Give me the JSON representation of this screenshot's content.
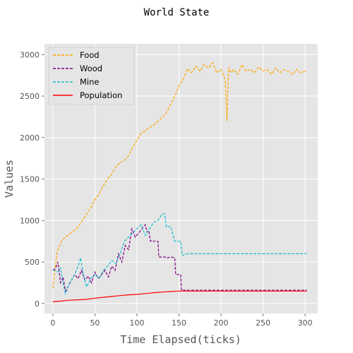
{
  "chart_data": {
    "type": "line",
    "title": "World State",
    "xlabel": "Time Elapsed(ticks)",
    "ylabel": "Values",
    "xlim": [
      -10,
      315
    ],
    "ylim": [
      -120,
      3130
    ],
    "xticks": [
      0,
      50,
      100,
      150,
      200,
      250,
      300
    ],
    "yticks": [
      0,
      500,
      1000,
      1500,
      2000,
      2500,
      3000
    ],
    "grid": true,
    "legend_position": "top-left",
    "background": "#e5e5e5",
    "series": [
      {
        "name": "Food",
        "color": "#ffa500",
        "style": "dashed",
        "x": [
          0,
          5,
          10,
          15,
          20,
          25,
          30,
          35,
          40,
          45,
          50,
          55,
          60,
          65,
          70,
          75,
          80,
          85,
          90,
          95,
          100,
          105,
          110,
          115,
          120,
          125,
          130,
          135,
          140,
          145,
          150,
          155,
          160,
          165,
          170,
          175,
          180,
          185,
          190,
          195,
          200,
          205,
          207,
          209,
          212,
          215,
          220,
          225,
          230,
          235,
          240,
          245,
          250,
          255,
          260,
          265,
          270,
          275,
          280,
          285,
          290,
          295,
          300,
          302
        ],
        "y": [
          180,
          620,
          750,
          800,
          840,
          880,
          920,
          1000,
          1080,
          1150,
          1250,
          1320,
          1420,
          1500,
          1560,
          1650,
          1700,
          1720,
          1780,
          1880,
          1970,
          2050,
          2080,
          2120,
          2150,
          2200,
          2240,
          2300,
          2400,
          2500,
          2620,
          2700,
          2830,
          2780,
          2860,
          2800,
          2880,
          2840,
          2900,
          2780,
          2820,
          2700,
          2200,
          2850,
          2780,
          2820,
          2760,
          2880,
          2800,
          2820,
          2780,
          2850,
          2800,
          2820,
          2760,
          2840,
          2780,
          2820,
          2800,
          2760,
          2820,
          2780,
          2800,
          2800
        ]
      },
      {
        "name": "Wood",
        "color": "#800080",
        "style": "dashed",
        "x": [
          0,
          3,
          6,
          9,
          12,
          15,
          18,
          22,
          26,
          30,
          34,
          38,
          42,
          46,
          50,
          54,
          58,
          62,
          66,
          70,
          74,
          78,
          82,
          86,
          90,
          94,
          98,
          102,
          106,
          110,
          112,
          114,
          116,
          118,
          120,
          125,
          126,
          130,
          135,
          136,
          140,
          145,
          146,
          150,
          152,
          153,
          160,
          180,
          200,
          220,
          240,
          260,
          280,
          300,
          302
        ],
        "y": [
          400,
          420,
          500,
          250,
          320,
          150,
          200,
          280,
          350,
          300,
          400,
          280,
          330,
          250,
          380,
          300,
          350,
          400,
          320,
          450,
          400,
          600,
          500,
          700,
          650,
          900,
          800,
          850,
          900,
          950,
          860,
          880,
          750,
          760,
          750,
          750,
          560,
          560,
          560,
          550,
          560,
          550,
          350,
          350,
          350,
          160,
          160,
          160,
          160,
          160,
          160,
          160,
          160,
          160,
          160
        ]
      },
      {
        "name": "Mine",
        "color": "#17becf",
        "style": "dashed",
        "x": [
          0,
          3,
          6,
          9,
          12,
          15,
          20,
          25,
          30,
          33,
          36,
          40,
          45,
          50,
          55,
          60,
          65,
          70,
          75,
          80,
          85,
          90,
          95,
          100,
          105,
          110,
          115,
          120,
          125,
          130,
          133,
          135,
          140,
          145,
          150,
          152,
          154,
          160,
          180,
          200,
          220,
          240,
          260,
          280,
          300,
          302
        ],
        "y": [
          400,
          400,
          380,
          430,
          240,
          120,
          250,
          330,
          450,
          550,
          360,
          200,
          300,
          350,
          300,
          400,
          450,
          520,
          480,
          600,
          750,
          800,
          850,
          900,
          950,
          820,
          900,
          980,
          1000,
          1080,
          1080,
          920,
          930,
          750,
          750,
          750,
          580,
          600,
          600,
          600,
          600,
          600,
          600,
          600,
          600,
          600
        ]
      },
      {
        "name": "Population",
        "color": "#ff0000",
        "style": "solid",
        "x": [
          0,
          10,
          20,
          30,
          40,
          50,
          60,
          70,
          80,
          90,
          100,
          110,
          120,
          130,
          140,
          150,
          155,
          160,
          200,
          250,
          300,
          302
        ],
        "y": [
          20,
          30,
          40,
          45,
          50,
          65,
          75,
          85,
          95,
          105,
          110,
          120,
          130,
          138,
          145,
          150,
          152,
          150,
          150,
          150,
          150,
          150
        ]
      }
    ]
  }
}
